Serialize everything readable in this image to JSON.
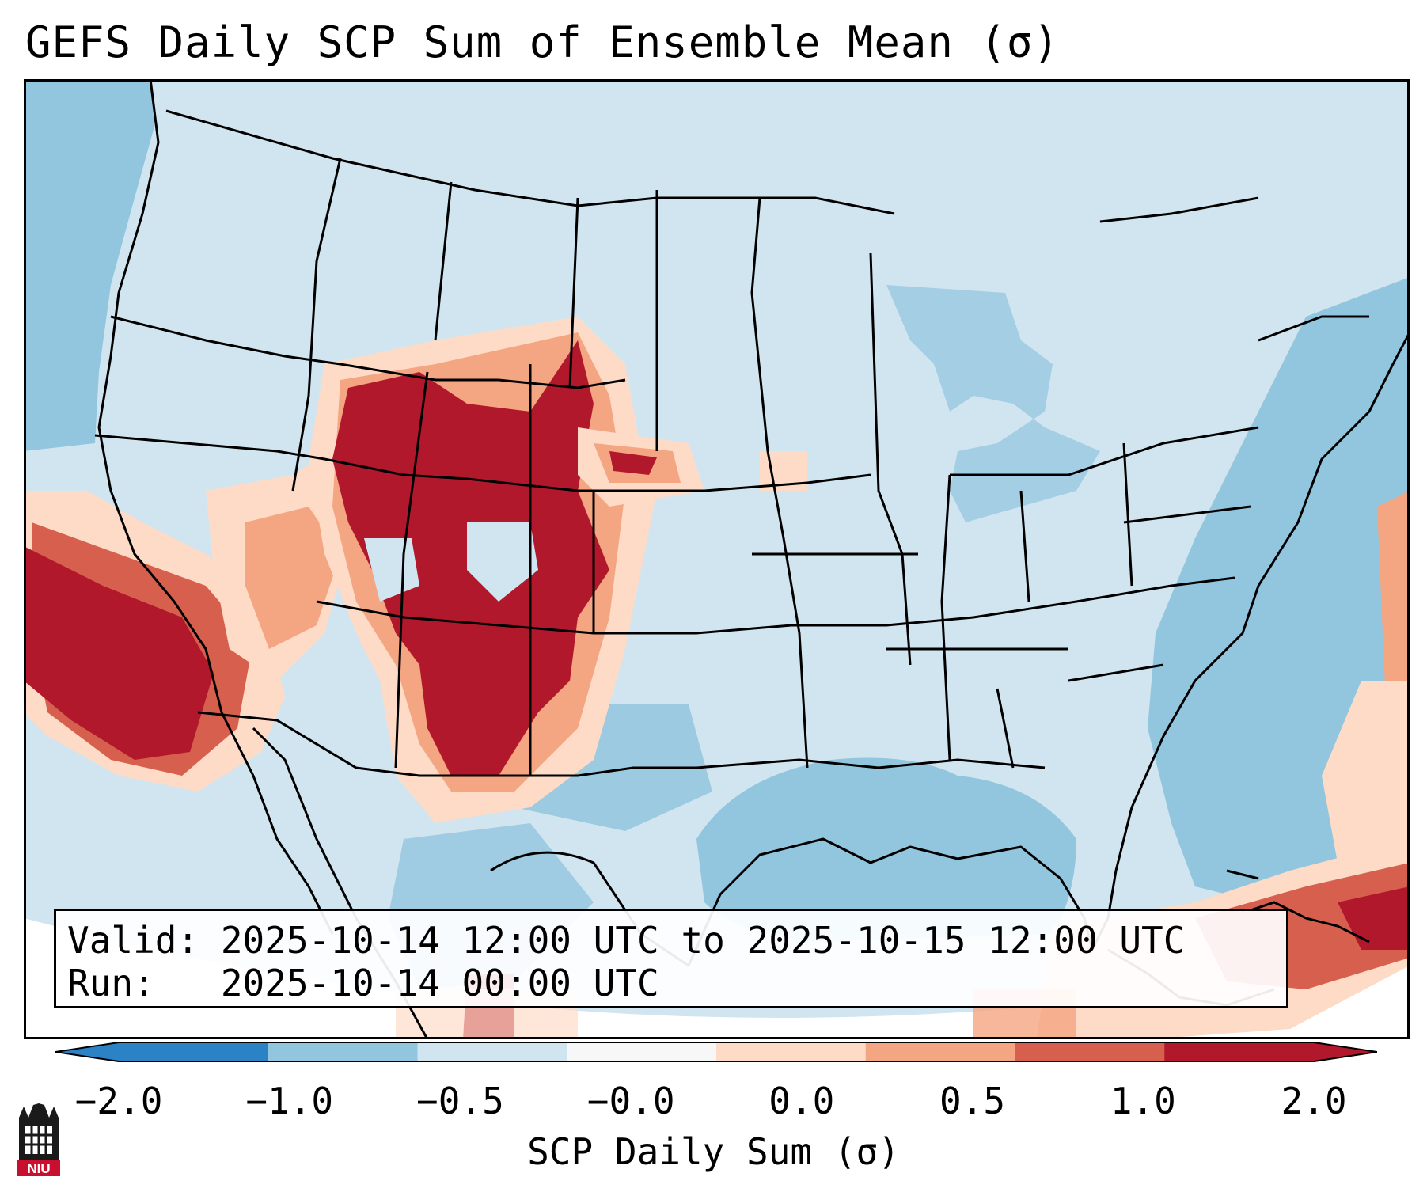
{
  "title": "GEFS Daily SCP Sum of Ensemble Mean (σ)",
  "info": {
    "valid_line": "Valid: 2025-10-14 12:00 UTC to 2025-10-15 12:00 UTC",
    "run_line": "Run:   2025-10-14 00:00 UTC"
  },
  "colorbar": {
    "label": "SCP Daily Sum (σ)",
    "ticks": [
      "−2.0",
      "−1.0",
      "−0.5",
      "−0.0",
      "0.0",
      "0.5",
      "1.0",
      "2.0"
    ],
    "colors": [
      "#2b83c6",
      "#92c5de",
      "#d1e5f0",
      "#f7f7f7",
      "#fddbc7",
      "#f4a582",
      "#d6604d",
      "#b2182b"
    ],
    "extend": "both"
  },
  "logo": {
    "text": "NIU"
  },
  "map": {
    "projection": "Lambert conformal, CONUS",
    "background_color": "#d1e5f0",
    "ocean_color": "#92c5de",
    "high_color": "#b2182b"
  }
}
